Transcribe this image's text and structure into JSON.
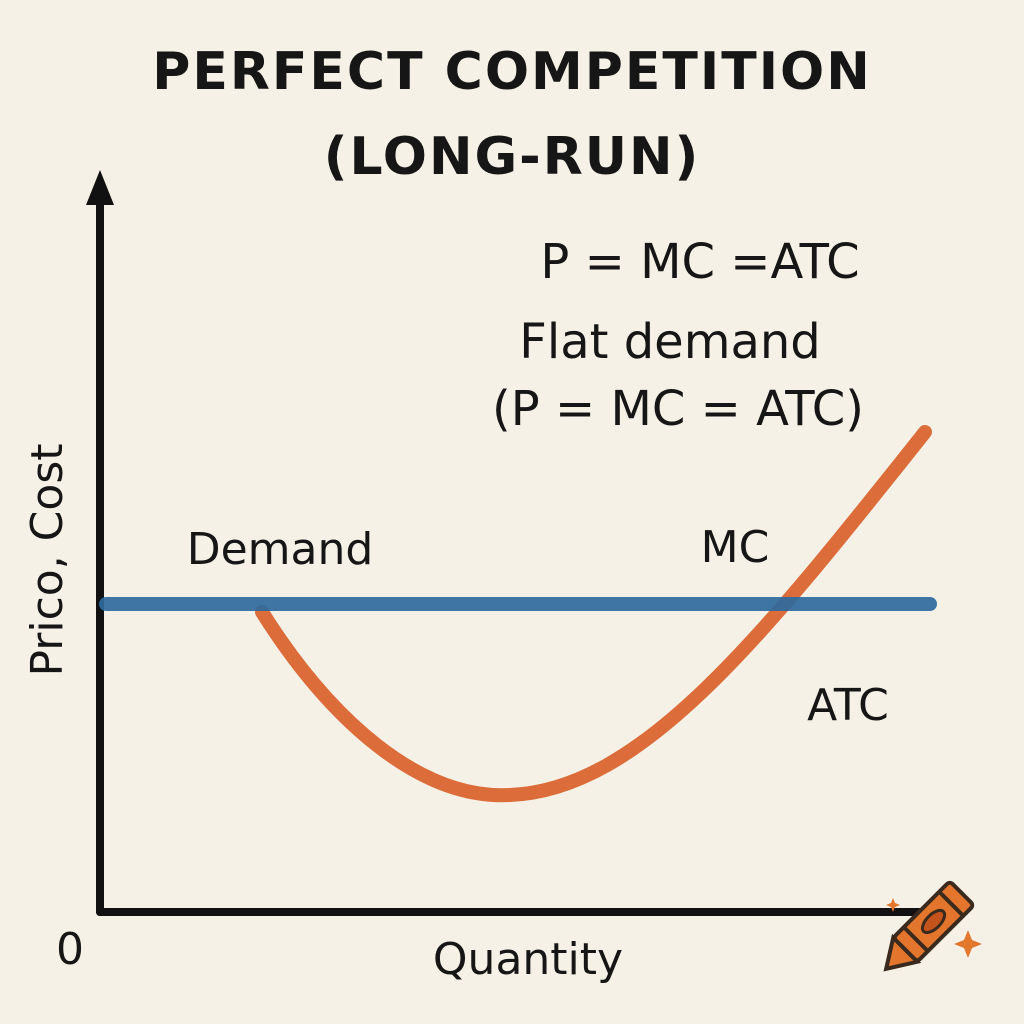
{
  "header": {
    "title": [
      "PERFECT COMPETITION",
      "(LONG-RUN)"
    ]
  },
  "annotations": [
    "P = MC =ATC",
    "Flat demand",
    "(P = MC = ATC)"
  ],
  "curves": {
    "demand": "Demand",
    "mc": "MC",
    "atc": "ATC"
  },
  "axes": {
    "y_label": "Prico, Cost",
    "origin": "0",
    "x_label": "Quantity"
  }
}
